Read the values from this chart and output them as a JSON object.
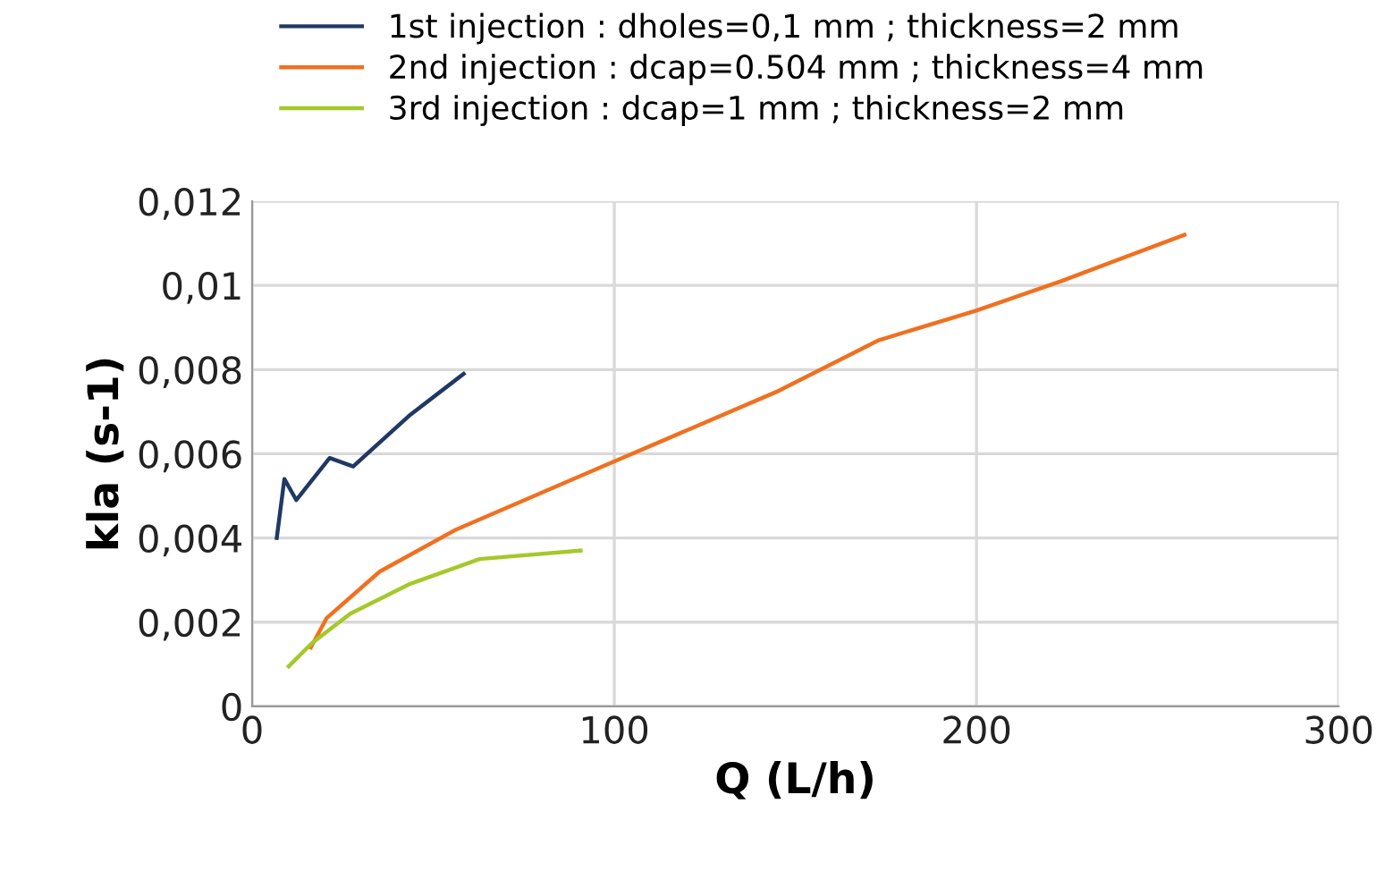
{
  "chart_data": {
    "type": "line",
    "xlabel": "Q (L/h)",
    "ylabel": "kla (s-1)",
    "xlim": [
      0,
      300
    ],
    "xticks": [
      0,
      100,
      200,
      300
    ],
    "ylim": [
      0,
      0.012
    ],
    "yticks": [
      0,
      {
        "value": 0.002,
        "label": "0,002"
      },
      {
        "value": 0.004,
        "label": "0,004"
      },
      {
        "value": 0.006,
        "label": "0,006"
      },
      {
        "value": 0.008,
        "label": "0,008"
      },
      {
        "value": 0.01,
        "label": "0,01"
      },
      {
        "value": 0.012,
        "label": "0,012"
      }
    ],
    "grid": true,
    "legend": "top",
    "line_style": "solid",
    "series": [
      {
        "name": "1st injection : dholes=0,1 mm ; thickness=2 mm",
        "color": "#203864",
        "x": [
          6.8,
          8.9,
          12.2,
          21.4,
          27.9,
          43.3,
          58.4
        ],
        "values": [
          0.004,
          0.0054,
          0.0049,
          0.0059,
          0.0057,
          0.0069,
          0.0079
        ]
      },
      {
        "name": "2nd injection : dcap=0.504 mm ; thickness=4 mm",
        "color": "#f07020",
        "x": [
          16.2,
          20.6,
          35.2,
          56.3,
          96.8,
          145.5,
          173.1,
          199.9,
          223.4,
          257.4
        ],
        "values": [
          0.0014,
          0.0021,
          0.0032,
          0.0042,
          0.0057,
          0.0075,
          0.0087,
          0.0094,
          0.0101,
          0.0112
        ]
      },
      {
        "name": "3rd injection : dcap=1 mm ; thickness=2 mm",
        "color": "#a5c82a",
        "x": [
          10.1,
          16.5,
          27.1,
          43.3,
          62.8,
          90.7
        ],
        "values": [
          0.00095,
          0.0015,
          0.0022,
          0.0029,
          0.0035,
          0.0037
        ]
      }
    ]
  }
}
